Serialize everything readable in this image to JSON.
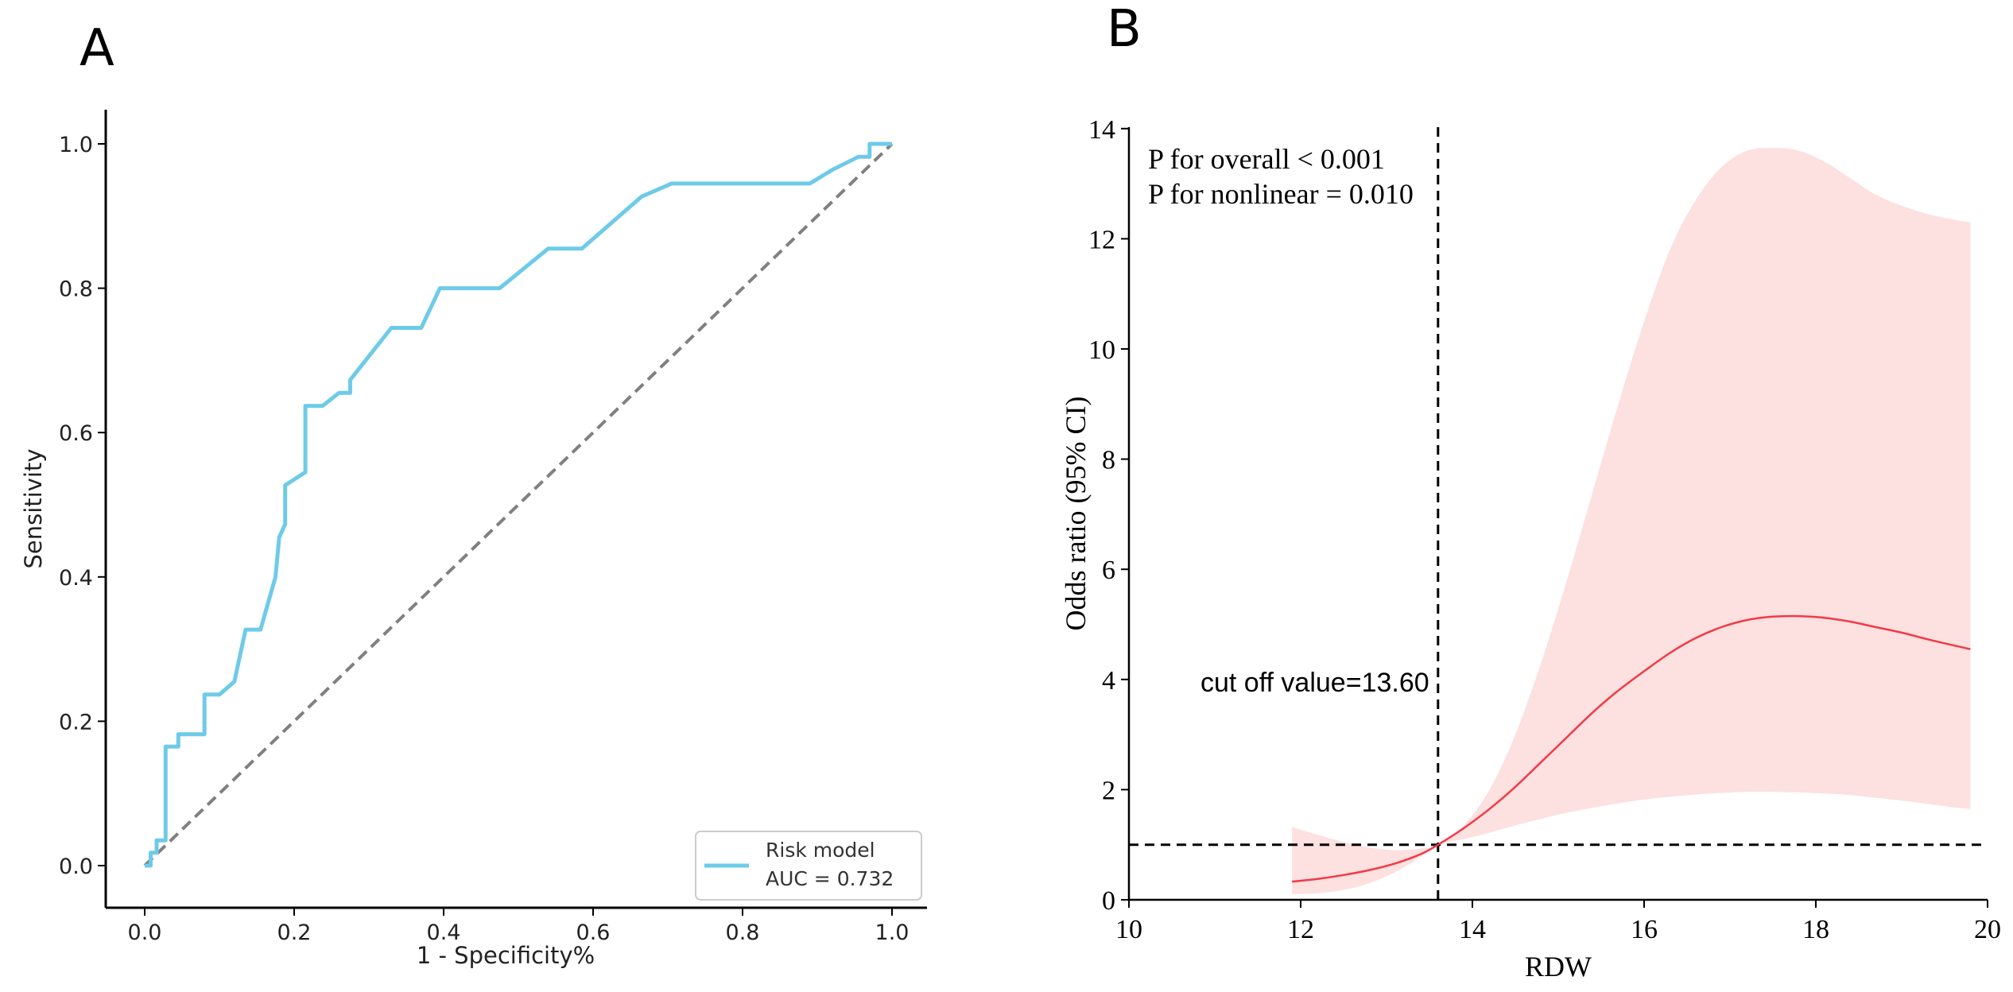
{
  "panel_a": {
    "panel_label": "A",
    "chart_data": {
      "type": "line",
      "title": "",
      "xlabel": "1 - Specificity%",
      "ylabel": "Sensitivity",
      "xlim": [
        -0.05,
        1.05
      ],
      "ylim": [
        -0.05,
        1.05
      ],
      "x_ticks": [
        "0.0",
        "0.2",
        "0.4",
        "0.6",
        "0.8",
        "1.0"
      ],
      "y_ticks": [
        "0.0",
        "0.2",
        "0.4",
        "0.6",
        "0.8",
        "1.0"
      ],
      "legend": {
        "position": "bottom-right",
        "label": "Risk model",
        "auc_text": "AUC = 0.732"
      },
      "colors": {
        "roc": "#6ecbe8",
        "diagonal": "#808080"
      },
      "series": [
        {
          "name": "Risk model",
          "x": [
            0,
            0.008,
            0.008,
            0.016,
            0.016,
            0.028,
            0.028,
            0.045,
            0.045,
            0.08,
            0.08,
            0.1,
            0.12,
            0.135,
            0.155,
            0.175,
            0.18,
            0.188,
            0.188,
            0.215,
            0.215,
            0.238,
            0.26,
            0.26,
            0.275,
            0.275,
            0.33,
            0.37,
            0.395,
            0.475,
            0.54,
            0.585,
            0.625,
            0.665,
            0.705,
            0.73,
            0.89,
            0.92,
            0.955,
            0.97,
            0.97,
            1.0
          ],
          "y": [
            0,
            0,
            0.018,
            0.018,
            0.035,
            0.035,
            0.165,
            0.165,
            0.182,
            0.182,
            0.237,
            0.237,
            0.255,
            0.327,
            0.327,
            0.4,
            0.455,
            0.473,
            0.527,
            0.545,
            0.637,
            0.637,
            0.655,
            0.655,
            0.655,
            0.673,
            0.745,
            0.745,
            0.8,
            0.8,
            0.855,
            0.855,
            0.891,
            0.927,
            0.945,
            0.945,
            0.945,
            0.964,
            0.982,
            0.982,
            1.0,
            1.0
          ]
        },
        {
          "name": "Chance",
          "x": [
            0,
            1
          ],
          "y": [
            0,
            1
          ]
        }
      ]
    }
  },
  "panel_b": {
    "panel_label": "B",
    "chart_data": {
      "type": "line",
      "title": "",
      "xlabel": "RDW",
      "ylabel": "Odds ratio (95% CI)",
      "xlim": [
        10,
        20
      ],
      "ylim": [
        0,
        14
      ],
      "x_ticks": [
        "10",
        "12",
        "14",
        "16",
        "18",
        "20"
      ],
      "y_ticks": [
        "0",
        "2",
        "4",
        "6",
        "8",
        "10",
        "12",
        "14"
      ],
      "annotations": {
        "p_overall": "P for overall < 0.001",
        "p_nonlinear": "P for nonlinear = 0.010",
        "cutoff_label": "cut off value=13.60"
      },
      "cutoff_x": 13.6,
      "reference_y": 1,
      "colors": {
        "curve": "#f23a46",
        "ci_band": "#fde0e0",
        "reference": "#000000"
      },
      "series": [
        {
          "name": "Odds ratio",
          "x": [
            11.9,
            12.2,
            12.5,
            12.8,
            13.1,
            13.4,
            13.6,
            13.9,
            14.2,
            14.5,
            14.8,
            15.1,
            15.4,
            15.7,
            16.0,
            16.3,
            16.6,
            16.9,
            17.2,
            17.5,
            17.8,
            18.1,
            18.4,
            18.7,
            19.0,
            19.3,
            19.6,
            19.8
          ],
          "y": [
            0.33,
            0.38,
            0.45,
            0.54,
            0.66,
            0.83,
            1.0,
            1.3,
            1.65,
            2.05,
            2.5,
            2.95,
            3.4,
            3.8,
            4.15,
            4.48,
            4.75,
            4.95,
            5.08,
            5.14,
            5.15,
            5.12,
            5.05,
            4.95,
            4.85,
            4.73,
            4.62,
            4.55
          ]
        },
        {
          "name": "95% CI upper",
          "x": [
            11.9,
            12.2,
            12.5,
            12.8,
            13.1,
            13.4,
            13.6,
            13.9,
            14.2,
            14.5,
            14.8,
            15.1,
            15.4,
            15.7,
            16.0,
            16.3,
            16.6,
            16.9,
            17.2,
            17.5,
            17.8,
            18.1,
            18.4,
            18.7,
            19.0,
            19.3,
            19.6,
            19.8
          ],
          "y": [
            1.32,
            1.18,
            1.05,
            0.95,
            0.9,
            0.93,
            1.0,
            1.35,
            2.0,
            3.0,
            4.3,
            5.8,
            7.4,
            9.0,
            10.5,
            11.8,
            12.7,
            13.3,
            13.6,
            13.65,
            13.6,
            13.4,
            13.1,
            12.8,
            12.6,
            12.45,
            12.35,
            12.3
          ]
        },
        {
          "name": "95% CI lower",
          "x": [
            11.9,
            12.2,
            12.5,
            12.8,
            13.1,
            13.4,
            13.6,
            13.9,
            14.2,
            14.5,
            14.8,
            15.1,
            15.4,
            15.7,
            16.0,
            16.3,
            16.6,
            16.9,
            17.2,
            17.5,
            17.8,
            18.1,
            18.4,
            18.7,
            19.0,
            19.3,
            19.6,
            19.8
          ],
          "y": [
            0.1,
            0.12,
            0.18,
            0.3,
            0.5,
            0.78,
            1.0,
            1.1,
            1.22,
            1.35,
            1.47,
            1.58,
            1.67,
            1.75,
            1.82,
            1.87,
            1.91,
            1.94,
            1.96,
            1.96,
            1.95,
            1.93,
            1.9,
            1.85,
            1.8,
            1.74,
            1.68,
            1.65
          ]
        }
      ]
    }
  }
}
